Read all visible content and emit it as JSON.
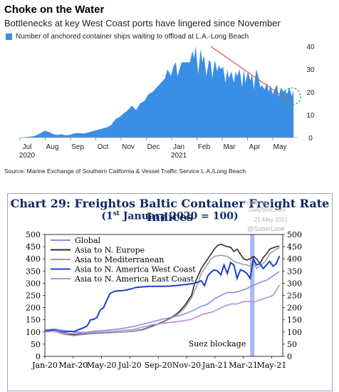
{
  "chart_data": [
    {
      "type": "area",
      "title": "Choke on the Water",
      "subtitle": "Bottlenecks at key West Coast ports have lingered since November",
      "legend": [
        "Number of anchored container ships waiting to offload at L.A.-Long Beach"
      ],
      "source": "Source: Marine Exchange of Southern California & Vessel Traffic Service L.A./Long Beach",
      "x_ticks": [
        "Jul",
        "Aug",
        "Sep",
        "Oct",
        "Nov",
        "Dec",
        "Jan",
        "Feb",
        "Mar",
        "Apr",
        "May"
      ],
      "x_subticks": {
        "Jul": "2020",
        "Jan": "2021"
      },
      "y_ticks": [
        "0",
        "10",
        "20",
        "30",
        "40"
      ],
      "ylim": [
        0,
        40
      ],
      "xlim_days": [
        0,
        335
      ],
      "colors": {
        "area": "#3b8ee6",
        "trend": "#e05a4f",
        "circle": "#2aa85a"
      },
      "series": [
        {
          "x": [
            0,
            15,
            20,
            25,
            30,
            35,
            40,
            45,
            50,
            55,
            60,
            65,
            70,
            75,
            80,
            85,
            90,
            95,
            100,
            105,
            110,
            115,
            120,
            125,
            130,
            135,
            140,
            145,
            150,
            155,
            160,
            165,
            170,
            175,
            178,
            182,
            185,
            188,
            190,
            195,
            200,
            205,
            208,
            210,
            212,
            215,
            218,
            220,
            222,
            225,
            228,
            230,
            232,
            235,
            238,
            240,
            242,
            245,
            248,
            250,
            252,
            255,
            258,
            260,
            262,
            265,
            268,
            270,
            272,
            275,
            278,
            280,
            282,
            285,
            288,
            290,
            292,
            295,
            298,
            300,
            302,
            305,
            308,
            310,
            312,
            315,
            318,
            320,
            322,
            325,
            328,
            330
          ],
          "values": [
            0,
            0.5,
            1,
            2,
            3,
            2.5,
            1.5,
            1.2,
            1.5,
            1,
            1.2,
            1.8,
            2,
            1.8,
            2,
            2.5,
            3,
            3.5,
            4,
            4.5,
            5.5,
            8,
            9,
            10.5,
            12,
            14,
            12,
            15,
            16,
            19,
            20,
            22,
            24,
            26,
            30,
            27,
            31,
            33,
            27,
            33,
            33,
            33,
            38,
            35,
            40,
            28,
            39,
            33,
            36,
            27,
            34,
            33,
            26,
            34,
            29,
            32,
            30,
            31,
            24,
            30,
            26,
            29,
            24,
            29,
            27,
            30,
            22,
            30,
            24,
            29,
            25,
            28,
            21,
            30,
            26,
            22,
            23,
            21,
            24,
            20,
            23,
            19,
            22,
            23,
            18,
            22,
            20,
            21,
            19,
            22,
            18,
            21
          ]
        }
      ],
      "annotations": {
        "trend_line": {
          "x": [
            230,
            325
          ],
          "y": [
            40,
            16
          ]
        },
        "circle_center": {
          "x": 328,
          "y": 18
        }
      }
    },
    {
      "type": "line",
      "title": "Chart 29: Freightos Baltic Container Freight Rate Indices",
      "subtitle_prefix": "(1",
      "subtitle_sup": "st",
      "subtitle_suffix": " January 2020 = 100)",
      "watermark": {
        "line1": "Posted on",
        "line2": "DailyShot.com",
        "line3": "21-May-2021",
        "handle": "@SoberLook"
      },
      "annotation": "Suez blockage",
      "ylim": [
        0,
        500
      ],
      "y_ticks": [
        "0",
        "50",
        "100",
        "150",
        "200",
        "250",
        "300",
        "350",
        "400",
        "450",
        "500"
      ],
      "x_ticks": [
        "Jan-20",
        "Mar-20",
        "May-20",
        "Jul-20",
        "Sep-20",
        "Nov-20",
        "Jan-21",
        "Mar-21",
        "May-21"
      ],
      "xlim_weeks": [
        0,
        73
      ],
      "suez_band_weeks": [
        63,
        64.3
      ],
      "series": [
        {
          "name": "Global",
          "color": "#8a8ee8",
          "x": [
            0,
            3,
            6,
            9,
            12,
            15,
            18,
            21,
            24,
            27,
            30,
            33,
            36,
            39,
            42,
            45,
            48,
            50,
            52,
            54,
            56,
            58,
            60,
            62,
            63,
            64,
            66,
            68,
            70,
            72
          ],
          "values": [
            108,
            112,
            106,
            100,
            98,
            103,
            106,
            110,
            115,
            122,
            132,
            142,
            152,
            160,
            170,
            185,
            205,
            215,
            235,
            250,
            262,
            262,
            268,
            278,
            285,
            292,
            303,
            312,
            330,
            348
          ]
        },
        {
          "name": "Asia to N. Europe",
          "color": "#2b2b2b",
          "x": [
            0,
            3,
            6,
            9,
            12,
            15,
            18,
            21,
            24,
            27,
            30,
            33,
            36,
            39,
            41,
            43,
            45,
            46,
            47,
            48,
            49,
            50,
            51,
            52,
            53,
            54,
            55,
            56,
            57,
            58,
            59,
            60,
            61,
            62,
            63,
            64,
            65,
            66,
            67,
            68,
            69,
            70,
            71,
            72
          ],
          "values": [
            100,
            108,
            95,
            88,
            92,
            95,
            96,
            98,
            100,
            103,
            110,
            125,
            140,
            160,
            180,
            210,
            250,
            300,
            330,
            360,
            380,
            400,
            420,
            440,
            455,
            460,
            455,
            450,
            448,
            430,
            440,
            420,
            400,
            395,
            400,
            410,
            400,
            380,
            405,
            420,
            440,
            445,
            450,
            452
          ]
        },
        {
          "name": "Asia to Mediterranean",
          "color": "#a0a0a0",
          "x": [
            0,
            3,
            6,
            9,
            12,
            15,
            18,
            21,
            24,
            27,
            30,
            33,
            36,
            39,
            41,
            43,
            45,
            47,
            48,
            49,
            50,
            51,
            52,
            54,
            56,
            58,
            60,
            62,
            63,
            64,
            65,
            66,
            68,
            69,
            70,
            71,
            72
          ],
          "values": [
            104,
            102,
            90,
            85,
            90,
            93,
            95,
            97,
            100,
            102,
            108,
            122,
            138,
            158,
            175,
            200,
            240,
            300,
            340,
            360,
            380,
            400,
            410,
            415,
            410,
            390,
            380,
            375,
            370,
            390,
            360,
            370,
            395,
            420,
            430,
            440,
            445
          ]
        },
        {
          "name": "Asia to N. America West Coast",
          "color": "#1d3fd0",
          "x": [
            0,
            2,
            4,
            6,
            8,
            9,
            10,
            11,
            12,
            13,
            14,
            15,
            16,
            17,
            18,
            19,
            20,
            21,
            22,
            24,
            26,
            28,
            30,
            32,
            34,
            36,
            38,
            40,
            42,
            44,
            46,
            48,
            49,
            50,
            51,
            52,
            53,
            54,
            55,
            56,
            57,
            58,
            59,
            60,
            61,
            62,
            63,
            64,
            65,
            66,
            67,
            68,
            69,
            70,
            71,
            72
          ],
          "values": [
            104,
            108,
            104,
            100,
            103,
            101,
            108,
            113,
            118,
            125,
            150,
            152,
            160,
            190,
            200,
            230,
            258,
            265,
            268,
            270,
            275,
            283,
            285,
            287,
            287,
            287,
            288,
            290,
            293,
            296,
            300,
            310,
            290,
            330,
            345,
            355,
            350,
            335,
            375,
            340,
            385,
            375,
            320,
            355,
            350,
            340,
            320,
            400,
            375,
            380,
            360,
            375,
            390,
            370,
            380,
            412
          ]
        },
        {
          "name": "Asia to N. America East Coast",
          "color": "#b48ed8",
          "x": [
            0,
            3,
            6,
            9,
            12,
            15,
            18,
            21,
            24,
            27,
            30,
            33,
            36,
            39,
            42,
            45,
            47,
            49,
            51,
            53,
            55,
            57,
            59,
            61,
            63,
            64,
            66,
            68,
            70,
            72
          ],
          "values": [
            100,
            104,
            95,
            93,
            96,
            98,
            100,
            103,
            106,
            110,
            120,
            130,
            135,
            140,
            145,
            152,
            165,
            175,
            180,
            192,
            205,
            215,
            215,
            225,
            225,
            222,
            232,
            240,
            250,
            292
          ]
        }
      ]
    }
  ]
}
